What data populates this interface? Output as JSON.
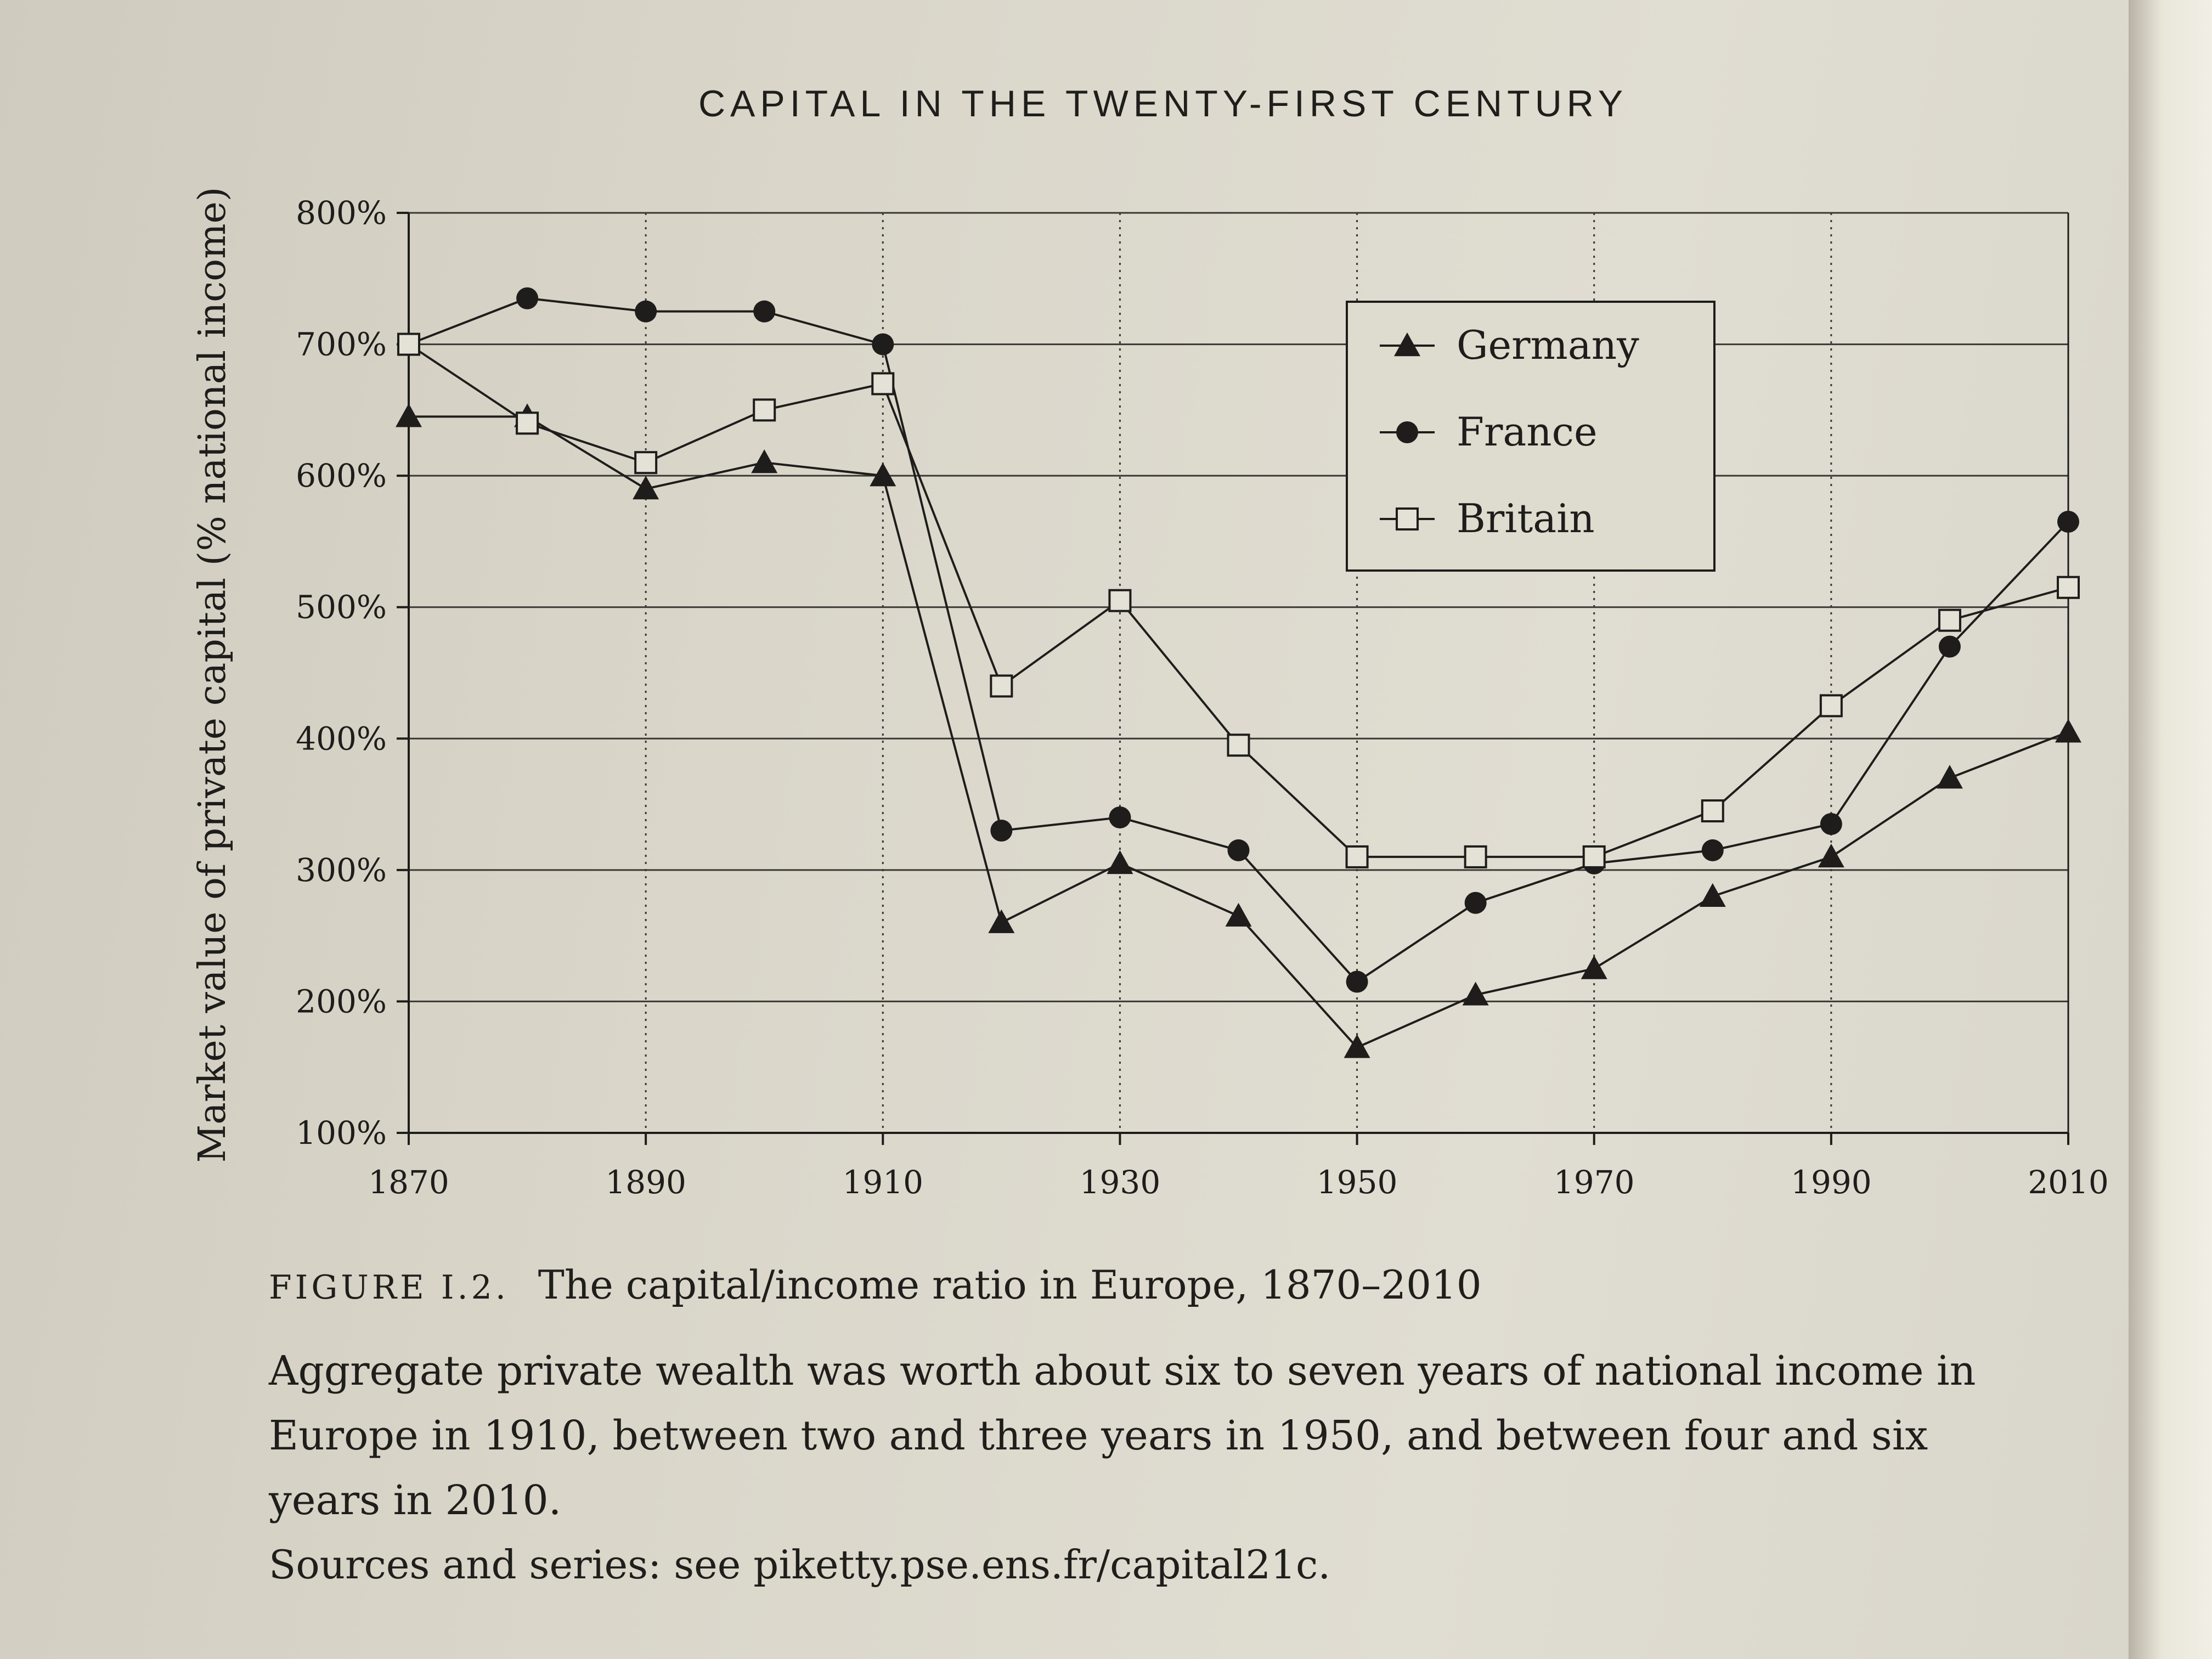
{
  "running_head": "CAPITAL IN THE TWENTY-FIRST CENTURY",
  "figure": {
    "label": "FIGURE I.2.",
    "title": "The capital/income ratio in Europe, 1870–2010",
    "description": "Aggregate private wealth was worth about six to seven years of national income in Europe in 1910, between two and three years in 1950, and between four and six years in 2010.",
    "sources": "Sources and series: see piketty.pse.ens.fr/capital21c."
  },
  "chart_data": {
    "type": "line",
    "title": "",
    "xlabel": "",
    "ylabel": "Market value of private capital (% national income)",
    "x": [
      1870,
      1880,
      1890,
      1900,
      1910,
      1920,
      1930,
      1940,
      1950,
      1960,
      1970,
      1980,
      1990,
      2000,
      2010
    ],
    "xlim": [
      1870,
      2010
    ],
    "ylim": [
      100,
      800
    ],
    "x_ticks": [
      "1870",
      "1890",
      "1910",
      "1930",
      "1950",
      "1970",
      "1990",
      "2010"
    ],
    "x_tick_values": [
      1870,
      1890,
      1910,
      1930,
      1950,
      1970,
      1990,
      2010
    ],
    "y_ticks": [
      "100%",
      "200%",
      "300%",
      "400%",
      "500%",
      "600%",
      "700%",
      "800%"
    ],
    "y_tick_values": [
      100,
      200,
      300,
      400,
      500,
      600,
      700,
      800
    ],
    "grid": {
      "horizontal": "solid",
      "vertical": "dotted"
    },
    "legend_position": "top-right",
    "series": [
      {
        "name": "Germany",
        "marker": "filled-triangle",
        "values": [
          645,
          645,
          590,
          610,
          600,
          260,
          305,
          265,
          165,
          205,
          225,
          280,
          310,
          370,
          405
        ]
      },
      {
        "name": "France",
        "marker": "filled-circle",
        "values": [
          700,
          735,
          725,
          725,
          700,
          330,
          340,
          315,
          215,
          275,
          305,
          315,
          335,
          470,
          565
        ]
      },
      {
        "name": "Britain",
        "marker": "open-square",
        "values": [
          700,
          640,
          610,
          650,
          670,
          440,
          505,
          395,
          310,
          310,
          310,
          345,
          425,
          490,
          515
        ]
      }
    ]
  }
}
